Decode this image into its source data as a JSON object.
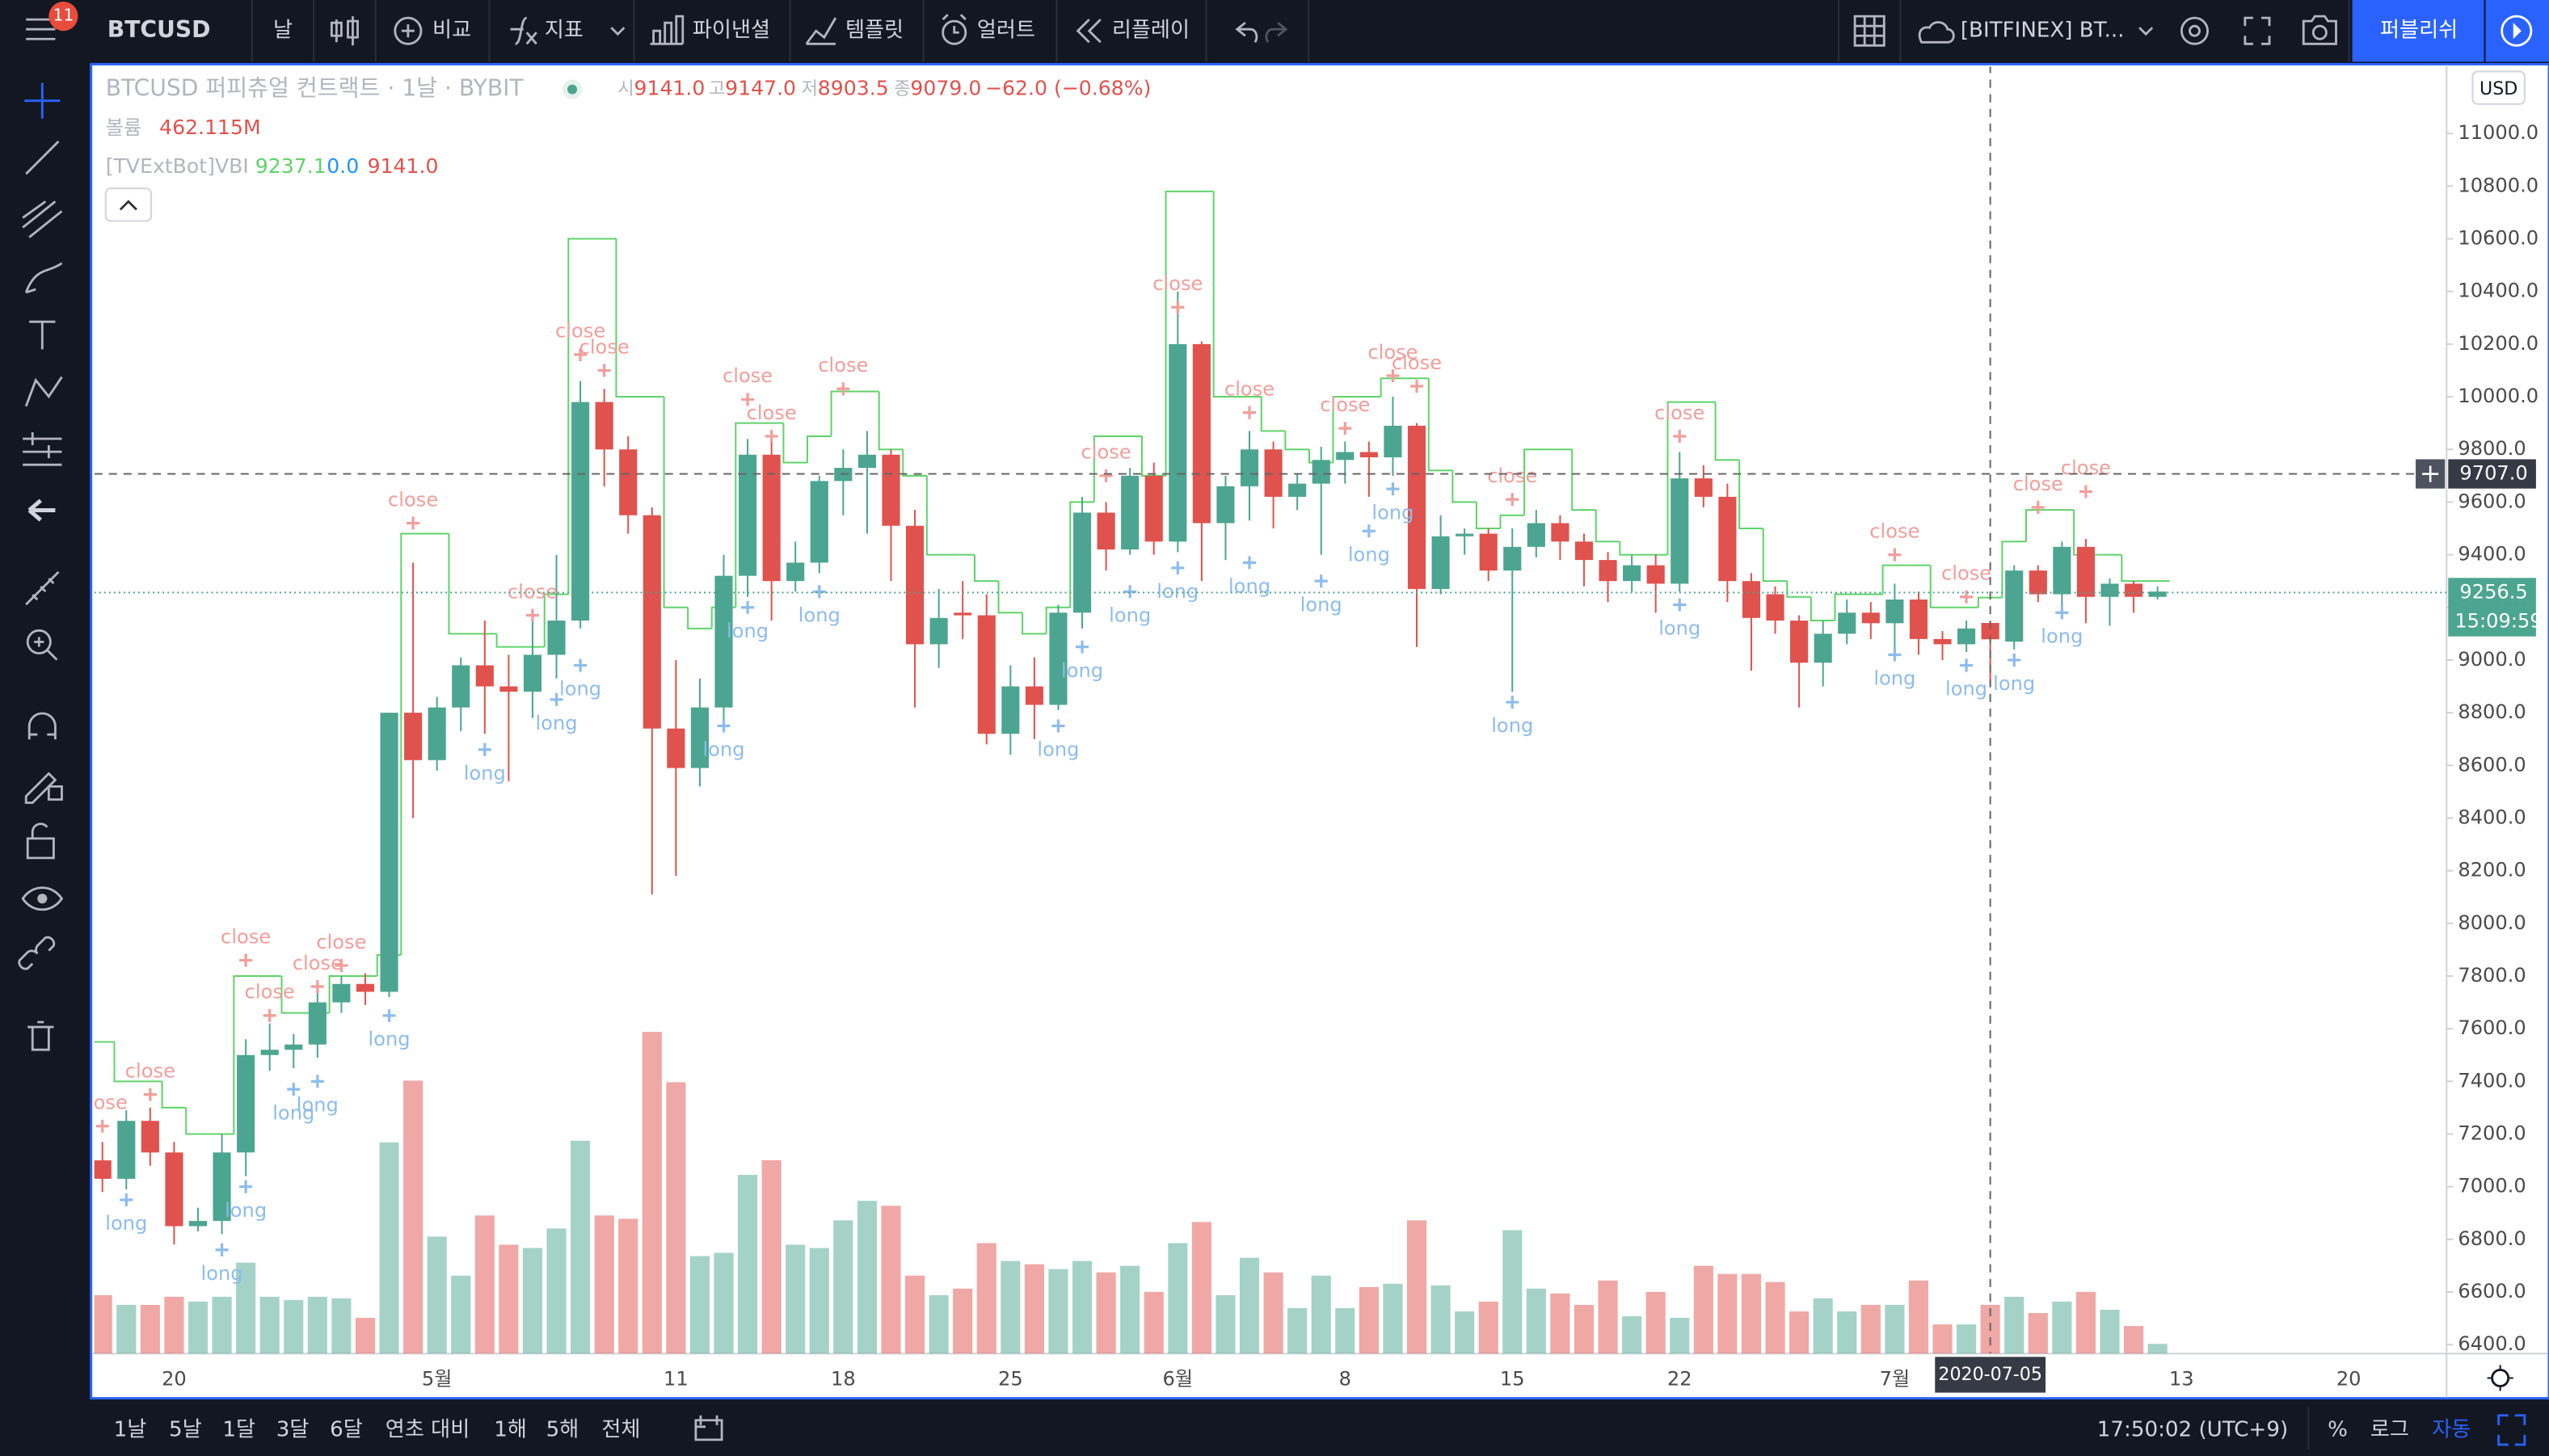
{
  "toolbar": {
    "symbol": "BTCUSD",
    "interval": "날",
    "compare": "비교",
    "indicators": "지표",
    "financials": "파이낸셜",
    "templates": "템플릿",
    "alert": "얼러트",
    "replay": "리플레이",
    "layout": "[BITFINEX] BT...",
    "publish": "퍼블리쉬",
    "badge": "11"
  },
  "legend": {
    "title": "BTCUSD 퍼피츄얼 컨트랙트 · 1날 · BYBIT",
    "o_label": "시",
    "o": "9141.0",
    "h_label": "고",
    "h": "9147.0",
    "l_label": "저",
    "l": "8903.5",
    "c_label": "종",
    "c": "9079.0",
    "change": "−62.0 (−0.68%)",
    "volume_label": "볼륨",
    "volume": "462.115M",
    "vbi_2": "0.0",
    "vbi_3": "9141.0",
    "currency": "USD"
  },
  "bottom_bar": {
    "ranges": [
      "1날",
      "5날",
      "1달",
      "3달",
      "6달",
      "연초 대비",
      "1해",
      "5해",
      "전체"
    ],
    "clock": "17:50:02 (UTC+9)",
    "percent": "%",
    "log": "로그",
    "auto": "자동"
  },
  "chart_data": {
    "type": "candlestick",
    "up_color": "#4ca590",
    "down_color": "#e0524d",
    "grid": false,
    "categories": [
      null,
      null,
      null,
      "20",
      null,
      null,
      null,
      null,
      null,
      null,
      null,
      null,
      null,
      null,
      "5월",
      null,
      null,
      null,
      null,
      null,
      null,
      null,
      null,
      null,
      "11",
      null,
      null,
      null,
      null,
      null,
      null,
      "18",
      null,
      null,
      null,
      null,
      null,
      null,
      "25",
      null,
      null,
      null,
      null,
      null,
      null,
      "6월",
      null,
      null,
      null,
      null,
      null,
      null,
      "8",
      null,
      null,
      null,
      null,
      null,
      null,
      "15",
      null,
      null,
      null,
      null,
      null,
      null,
      "22",
      null,
      null,
      null,
      null,
      null,
      null,
      null,
      null,
      "7월",
      null,
      null,
      null,
      null,
      null,
      null,
      null,
      null,
      null,
      null,
      null,
      "13",
      null,
      null,
      null,
      null,
      null,
      null,
      "20",
      null,
      null,
      null,
      null
    ],
    "open": [
      7100,
      7030,
      7250,
      7130,
      6850,
      6870,
      7130,
      7500,
      7520,
      7540,
      7700,
      7770,
      7740,
      8800,
      8620,
      8820,
      8980,
      8900,
      8880,
      9020,
      9150,
      9980,
      9800,
      9550,
      8740,
      8590,
      8820,
      9320,
      9780,
      9300,
      9370,
      9680,
      9730,
      9780,
      9510,
      9060,
      9180,
      9170,
      8720,
      8900,
      8830,
      9180,
      9560,
      9420,
      9700,
      9450,
      10200,
      9520,
      9660,
      9800,
      9620,
      9670,
      9760,
      9790,
      9770,
      9890,
      9270,
      9470,
      9480,
      9340,
      9430,
      9520,
      9450,
      9380,
      9300,
      9360,
      9290,
      9690,
      9620,
      9300,
      9250,
      9150,
      8990,
      9100,
      9180,
      9140,
      9230,
      9080,
      9060,
      9141,
      9070,
      9340,
      9250,
      9430,
      9240,
      9290,
      9240,
      null,
      null,
      null,
      null,
      null,
      null,
      null,
      null,
      null,
      null,
      null,
      null
    ],
    "high": [
      7170,
      7290,
      7300,
      7170,
      6920,
      7200,
      7560,
      7620,
      7580,
      7750,
      7800,
      7810,
      8800,
      9370,
      8860,
      9010,
      9150,
      9020,
      9170,
      9400,
      10060,
      10030,
      9850,
      9580,
      9000,
      8930,
      9400,
      9840,
      9830,
      9450,
      9700,
      9800,
      9870,
      9800,
      9570,
      9270,
      9300,
      9250,
      8980,
      9010,
      9210,
      9620,
      9600,
      9730,
      9750,
      10400,
      10210,
      9700,
      9870,
      9830,
      9710,
      9810,
      9830,
      9830,
      10000,
      9900,
      9550,
      9500,
      9500,
      9500,
      9570,
      9550,
      9480,
      9410,
      9400,
      9400,
      9790,
      9740,
      9670,
      9330,
      9280,
      9170,
      9150,
      9230,
      9220,
      9290,
      9260,
      9110,
      9150,
      9147,
      9360,
      9360,
      9450,
      9460,
      9310,
      9300,
      9280,
      null,
      null,
      null,
      null,
      null,
      null,
      null,
      null,
      null,
      null,
      null,
      null
    ],
    "low": [
      6980,
      6990,
      7080,
      6780,
      6830,
      6820,
      7040,
      7440,
      7450,
      7490,
      7660,
      7690,
      7720,
      8400,
      8580,
      8730,
      8720,
      8540,
      8780,
      8930,
      9120,
      9660,
      9480,
      8110,
      8180,
      8520,
      8770,
      9240,
      9150,
      9260,
      9330,
      9550,
      9480,
      9300,
      8820,
      8970,
      9080,
      8680,
      8640,
      8700,
      8810,
      9120,
      9340,
      9400,
      9400,
      9410,
      9300,
      9380,
      9530,
      9500,
      9570,
      9400,
      9670,
      9620,
      9700,
      9050,
      9250,
      9400,
      9300,
      8880,
      9390,
      9380,
      9280,
      9220,
      9260,
      9180,
      9260,
      9580,
      9220,
      8960,
      9100,
      8820,
      8900,
      9060,
      9080,
      9040,
      9020,
      9000,
      9030,
      8903.5,
      9040,
      9220,
      9200,
      9140,
      9130,
      9180,
      9230,
      null,
      null,
      null,
      null,
      null,
      null,
      null,
      null,
      null,
      null,
      null,
      null
    ],
    "close": [
      7030,
      7250,
      7130,
      6850,
      6870,
      7130,
      7500,
      7520,
      7540,
      7700,
      7770,
      7740,
      8800,
      8620,
      8820,
      8980,
      8900,
      8880,
      9020,
      9150,
      9980,
      9800,
      9550,
      8740,
      8590,
      8820,
      9320,
      9780,
      9300,
      9370,
      9680,
      9730,
      9780,
      9510,
      9060,
      9160,
      9170,
      8720,
      8900,
      8830,
      9180,
      9560,
      9420,
      9700,
      9450,
      10200,
      9520,
      9660,
      9800,
      9620,
      9670,
      9760,
      9790,
      9770,
      9890,
      9270,
      9470,
      9480,
      9340,
      9430,
      9520,
      9450,
      9380,
      9300,
      9360,
      9290,
      9690,
      9620,
      9300,
      9160,
      9150,
      8990,
      9100,
      9180,
      9140,
      9230,
      9080,
      9060,
      9120,
      9079,
      9340,
      9250,
      9430,
      9240,
      9290,
      9240,
      9260,
      null,
      null,
      null,
      null,
      null,
      null,
      null,
      null,
      null,
      null,
      null,
      null
    ],
    "volumes": [
      554000000.0,
      462000000.0,
      462000000.0,
      539000000.0,
      493000000.0,
      539000000.0,
      862000000.0,
      539000000.0,
      508000000.0,
      539000000.0,
      524000000.0,
      339000000.0,
      2002000000.0,
      2587000000.0,
      1109000000.0,
      739000000.0,
      1309000000.0,
      1032000000.0,
      1001000000.0,
      1186000000.0,
      2017000000.0,
      1309000000.0,
      1278000000.0,
      3049000000.0,
      2572000000.0,
      924000000.0,
      955000000.0,
      1694000000.0,
      1833000000.0,
      1032000000.0,
      1001000000.0,
      1263000000.0,
      1448000000.0,
      1401000000.0,
      739000000.0,
      554000000.0,
      616000000.0,
      1047000000.0,
      878000000.0,
      847000000.0,
      801000000.0,
      878000000.0,
      770000000.0,
      832000000.0,
      585000000.0,
      1047000000.0,
      1247000000.0,
      554000000.0,
      909000000.0,
      770000000.0,
      431000000.0,
      739000000.0,
      431000000.0,
      631000000.0,
      662000000.0,
      1263000000.0,
      647000000.0,
      400000000.0,
      493000000.0,
      1170000000.0,
      616000000.0,
      570000000.0,
      462000000.0,
      693000000.0,
      354000000.0,
      585000000.0,
      339000000.0,
      832000000.0,
      755000000.0,
      755000000.0,
      678000000.0,
      400000000.0,
      524000000.0,
      400000000.0,
      462000000.0,
      462000000.0,
      693000000.0,
      277000000.0,
      277000000.0,
      462115000,
      539000000.0,
      385000000.0,
      493000000.0,
      585000000.0,
      416000000.0,
      262000000.0,
      92000000.0,
      null,
      null,
      null,
      null,
      null,
      null,
      null,
      null,
      null,
      null,
      null,
      null
    ],
    "ylim": [
      6366,
      11260
    ],
    "yticks": [
      {
        "value": 6400,
        "label": "6400.0"
      },
      {
        "value": 6600,
        "label": "6600.0"
      },
      {
        "value": 6800,
        "label": "6800.0"
      },
      {
        "value": 7000,
        "label": "7000.0"
      },
      {
        "value": 7200,
        "label": "7200.0"
      },
      {
        "value": 7400,
        "label": "7400.0"
      },
      {
        "value": 7600,
        "label": "7600.0"
      },
      {
        "value": 7800,
        "label": "7800.0"
      },
      {
        "value": 8000,
        "label": "8000.0"
      },
      {
        "value": 8200,
        "label": "8200.0"
      },
      {
        "value": 8400,
        "label": "8400.0"
      },
      {
        "value": 8600,
        "label": "8600.0"
      },
      {
        "value": 8800,
        "label": "8800.0"
      },
      {
        "value": 9000,
        "label": "9000.0"
      },
      {
        "value": 9200,
        "label": "9200.0"
      },
      {
        "value": 9400,
        "label": "9400.0"
      },
      {
        "value": 9600,
        "label": "9600.0"
      },
      {
        "value": 9800,
        "label": "9800.0"
      },
      {
        "value": 10000,
        "label": "10000.0"
      },
      {
        "value": 10200,
        "label": "10200.0"
      },
      {
        "value": 10400,
        "label": "10400.0"
      },
      {
        "value": 10600,
        "label": "10600.0"
      },
      {
        "value": 10800,
        "label": "10800.0"
      },
      {
        "value": 11000,
        "label": "11000.0"
      }
    ],
    "series": [
      {
        "name": "close",
        "color": "#f19e9a",
        "values": [
          7230,
          null,
          7350,
          null,
          null,
          null,
          7860,
          7650,
          null,
          7760,
          7840,
          null,
          null,
          9520,
          null,
          null,
          null,
          null,
          9170,
          null,
          10160,
          10100,
          null,
          null,
          null,
          null,
          null,
          9990,
          9850,
          null,
          null,
          10030,
          null,
          null,
          null,
          null,
          null,
          null,
          null,
          null,
          null,
          null,
          9700,
          null,
          null,
          10340,
          null,
          null,
          9940,
          null,
          null,
          null,
          9880,
          null,
          10080,
          10040,
          null,
          null,
          null,
          9610,
          null,
          null,
          null,
          null,
          null,
          null,
          9850,
          null,
          null,
          null,
          null,
          null,
          null,
          null,
          null,
          9400,
          null,
          null,
          9240,
          null,
          null,
          9580,
          null,
          9640,
          null,
          null,
          null,
          null,
          null,
          null,
          null,
          null,
          null,
          null,
          null,
          null,
          null,
          null,
          null
        ]
      },
      {
        "name": "long",
        "color": "#8dbcec",
        "values": [
          null,
          6950,
          null,
          null,
          null,
          6760,
          7000,
          null,
          7370,
          7400,
          null,
          null,
          7650,
          null,
          null,
          null,
          8660,
          null,
          null,
          8850,
          8980,
          null,
          null,
          null,
          null,
          null,
          8750,
          9200,
          null,
          null,
          9260,
          null,
          null,
          null,
          null,
          null,
          null,
          null,
          null,
          null,
          8750,
          9050,
          null,
          9260,
          null,
          9350,
          null,
          null,
          9370,
          null,
          null,
          9300,
          null,
          9490,
          9650,
          null,
          null,
          null,
          null,
          8840,
          null,
          null,
          null,
          null,
          null,
          null,
          9210,
          null,
          null,
          null,
          null,
          null,
          null,
          null,
          null,
          9020,
          null,
          null,
          8980,
          null,
          9000,
          null,
          9180,
          null,
          null,
          null,
          null,
          null,
          null,
          null,
          null,
          null,
          null,
          null,
          null,
          null,
          null,
          null,
          null
        ]
      },
      {
        "name": "[TVExtBot]VBI",
        "color": "#5fd36a",
        "values": [
          7550,
          7400,
          7400,
          7300,
          7200,
          7200,
          7800,
          7800,
          7660,
          7660,
          7800,
          7800,
          7880,
          9480,
          9480,
          9100,
          9100,
          9050,
          9050,
          9250,
          10600,
          10600,
          10000,
          10000,
          9200,
          9120,
          9200,
          9900,
          9900,
          9750,
          9850,
          10020,
          10020,
          9800,
          9700,
          9400,
          9400,
          9300,
          9180,
          9100,
          9200,
          9600,
          9850,
          9850,
          9700,
          10780,
          10780,
          10000,
          10000,
          9870,
          9800,
          9750,
          10000,
          10000,
          10070,
          10070,
          9720,
          9600,
          9500,
          9550,
          9800,
          9800,
          9570,
          9450,
          9400,
          9400,
          9980,
          9980,
          9760,
          9500,
          9300,
          9240,
          9150,
          9250,
          9250,
          9360,
          9360,
          9200,
          9200,
          9237.1,
          9450,
          9570,
          9570,
          9400,
          9400,
          9300,
          9300,
          null,
          null,
          null,
          null,
          null,
          null,
          null,
          null,
          null,
          null,
          null,
          null
        ]
      }
    ],
    "price_lines": [
      {
        "value": 9707,
        "label": "9707.0"
      },
      {
        "value": 9256.5,
        "label": "9256.5"
      }
    ],
    "countdown": "15:09:59",
    "crosshair_date": "2020-07-05"
  }
}
